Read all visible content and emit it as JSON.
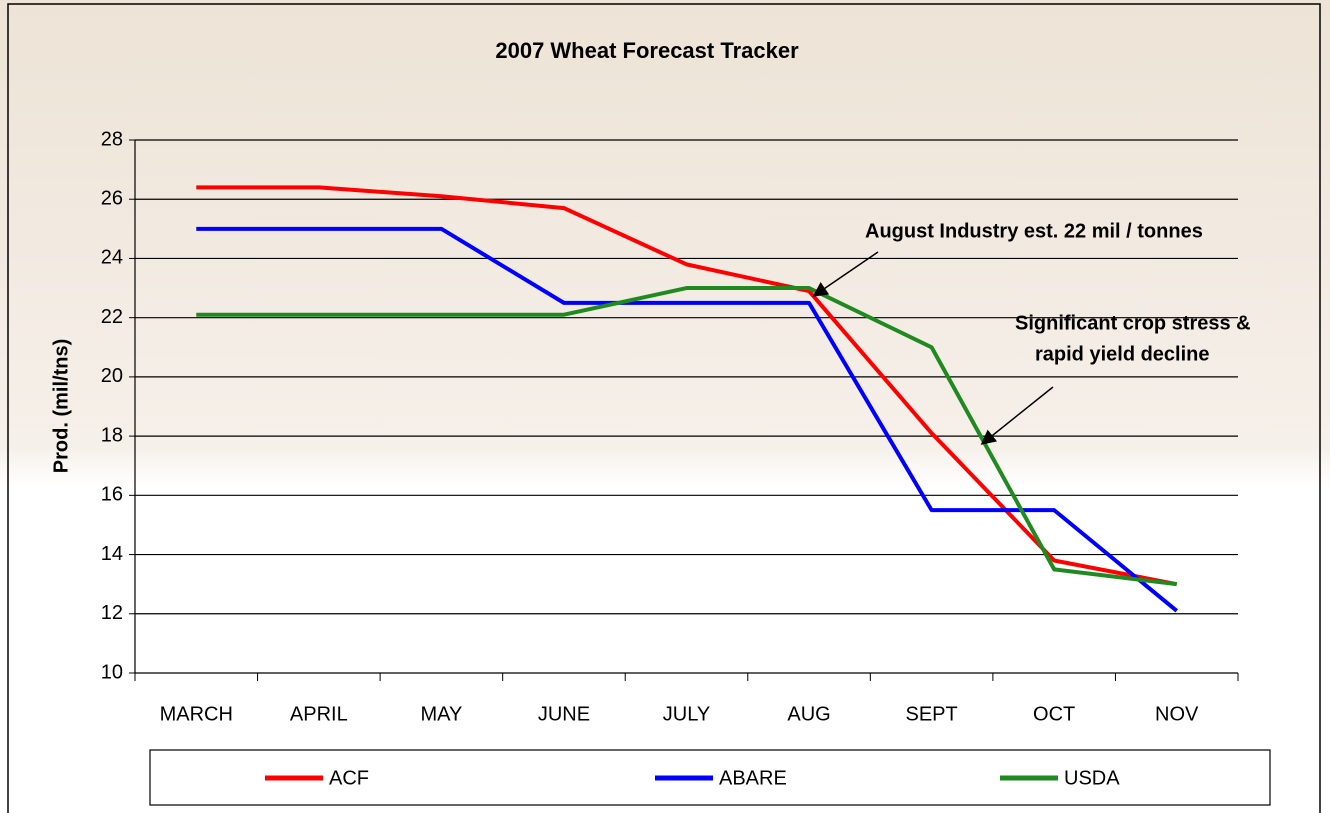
{
  "chart_data": {
    "type": "line",
    "title": "2007 Wheat Forecast Tracker",
    "y_label": "Prod. (mil/tns)",
    "categories": [
      "MARCH",
      "APRIL",
      "MAY",
      "JUNE",
      "JULY",
      "AUG",
      "SEPT",
      "OCT",
      "NOV"
    ],
    "series": [
      {
        "name": "ACF",
        "color": "#ff0000",
        "values": [
          26.4,
          26.4,
          26.1,
          25.7,
          23.8,
          22.9,
          18.1,
          13.8,
          13.0
        ]
      },
      {
        "name": "ABARE",
        "color": "#0000ff",
        "values": [
          25,
          25,
          25,
          22.5,
          22.5,
          22.5,
          15.5,
          15.5,
          12.1
        ]
      },
      {
        "name": "USDA",
        "color": "#1f8a1f",
        "values": [
          22.1,
          22.1,
          22.1,
          22.1,
          23.0,
          23.0,
          21.0,
          13.5,
          13.0
        ]
      }
    ],
    "ylim": [
      10,
      28
    ],
    "yticks": [
      10,
      12,
      14,
      16,
      18,
      20,
      22,
      24,
      26,
      28
    ],
    "grid": true,
    "legend": "bottom",
    "annotations": [
      "August Industry est. 22 mil / tonnes",
      "Significant crop stress &",
      "rapid yield decline"
    ]
  }
}
